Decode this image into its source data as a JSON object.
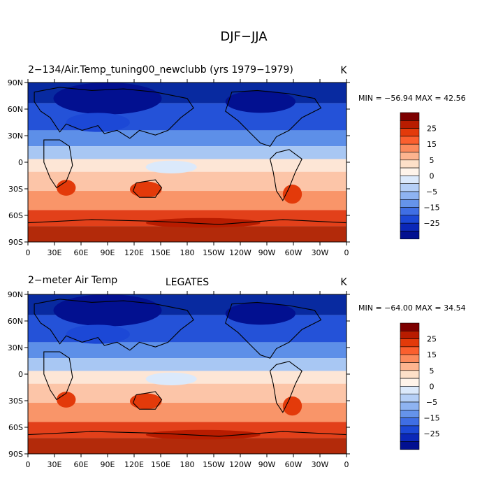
{
  "figure": {
    "title": "DJF−JJA"
  },
  "panels": [
    {
      "left_label": "2−134/Air.Temp_tuning00_newclubb (yrs 1979−1979)",
      "center_label": "",
      "units": "K",
      "stats": "MIN = −56.94  MAX =  42.56"
    },
    {
      "left_label": "2−meter Air Temp",
      "center_label": "LEGATES",
      "units": "K",
      "stats": "MIN = −64.00  MAX =  34.54"
    }
  ],
  "colorbar": {
    "labels": [
      "25",
      "15",
      "5",
      "0",
      "−5",
      "−15",
      "−25"
    ],
    "colors": [
      "#7d0000",
      "#b81c00",
      "#e33a0a",
      "#fb5f2e",
      "#fc8a5c",
      "#fdb48f",
      "#fde0c8",
      "#fff4ea",
      "#dbe9fb",
      "#b5cff6",
      "#8eb3f1",
      "#6593ea",
      "#3f6ee4",
      "#1c48d6",
      "#0b27b8",
      "#021090"
    ]
  },
  "chart_data": [
    {
      "type": "heatmap",
      "title": "DJF−JJA",
      "subtitle": "2−134/Air.Temp_tuning00_newclubb (yrs 1979−1979)",
      "units": "K",
      "min": -56.94,
      "max": 42.56,
      "xlim": [
        0,
        360
      ],
      "ylim": [
        -90,
        90
      ],
      "xticks": [
        "0",
        "30E",
        "60E",
        "90E",
        "120E",
        "150E",
        "180",
        "150W",
        "120W",
        "90W",
        "60W",
        "30W",
        "0"
      ],
      "yticks": [
        "90N",
        "60N",
        "30N",
        "0",
        "30S",
        "60S",
        "90S"
      ],
      "colorbar_labels": [
        "25",
        "15",
        "5",
        "0",
        "−5",
        "−15",
        "−25"
      ]
    },
    {
      "type": "heatmap",
      "title": "LEGATES",
      "subtitle": "2−meter Air Temp",
      "units": "K",
      "min": -64.0,
      "max": 34.54,
      "xlim": [
        0,
        360
      ],
      "ylim": [
        -90,
        90
      ],
      "xticks": [
        "0",
        "30E",
        "60E",
        "90E",
        "120E",
        "150E",
        "180",
        "150W",
        "120W",
        "90W",
        "60W",
        "30W",
        "0"
      ],
      "yticks": [
        "90N",
        "60N",
        "30N",
        "0",
        "30S",
        "60S",
        "90S"
      ],
      "colorbar_labels": [
        "25",
        "15",
        "5",
        "0",
        "−5",
        "−15",
        "−25"
      ]
    }
  ]
}
